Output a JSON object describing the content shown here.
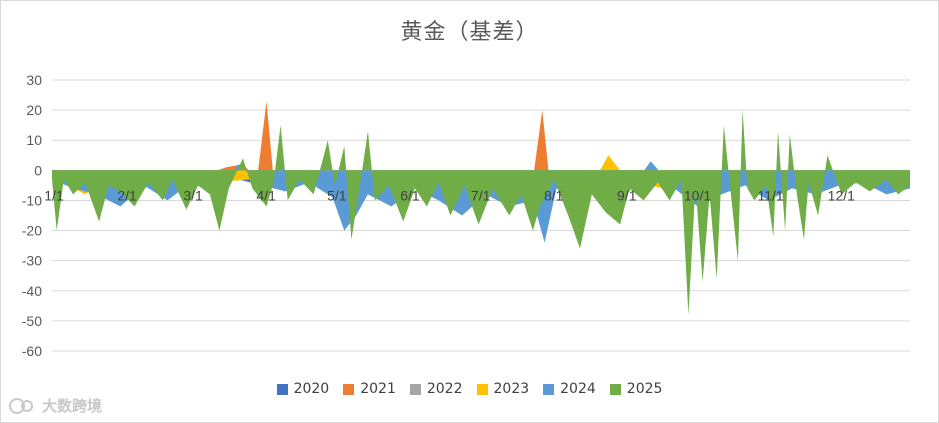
{
  "chart_data": {
    "type": "area",
    "title": "黄金（基差）",
    "xlabel": "",
    "ylabel": "",
    "ylim": [
      -60,
      30
    ],
    "yticks": [
      30,
      20,
      10,
      0,
      -10,
      -20,
      -30,
      -40,
      -50,
      -60
    ],
    "grid": true,
    "legend_position": "bottom",
    "x_tick_labels": [
      "1/1",
      "2/1",
      "3/1",
      "4/1",
      "5/1",
      "6/1",
      "7/1",
      "8/1",
      "9/1",
      "10/1",
      "11/1",
      "12/1"
    ],
    "series": [
      {
        "name": "2020",
        "color": "#4472c4",
        "points": [
          [
            1,
            -3
          ],
          [
            8,
            -5
          ],
          [
            15,
            -2
          ],
          [
            22,
            -6
          ],
          [
            29,
            -4
          ],
          [
            36,
            -3
          ],
          [
            45,
            -6
          ],
          [
            55,
            -4
          ],
          [
            62,
            -3
          ],
          [
            70,
            -5
          ],
          [
            75,
            -2
          ],
          [
            85,
            -4
          ],
          [
            95,
            -5
          ],
          [
            105,
            -3
          ],
          [
            115,
            -6
          ],
          [
            125,
            -3
          ],
          [
            135,
            -5
          ],
          [
            145,
            -4
          ],
          [
            155,
            -3
          ],
          [
            165,
            -5
          ],
          [
            175,
            -4
          ],
          [
            185,
            -6
          ],
          [
            195,
            -3
          ],
          [
            205,
            -5
          ],
          [
            215,
            -4
          ],
          [
            225,
            -6
          ],
          [
            235,
            -5
          ],
          [
            245,
            -6
          ],
          [
            255,
            -4
          ],
          [
            265,
            -3
          ],
          [
            275,
            -5
          ],
          [
            285,
            -4
          ],
          [
            295,
            -3
          ],
          [
            305,
            -5
          ],
          [
            315,
            -4
          ],
          [
            325,
            -3
          ],
          [
            335,
            -4
          ],
          [
            345,
            -3
          ],
          [
            355,
            -5
          ],
          [
            365,
            -4
          ]
        ]
      },
      {
        "name": "2021",
        "color": "#ed7d31",
        "points": [
          [
            1,
            -2
          ],
          [
            20,
            -4
          ],
          [
            40,
            -6
          ],
          [
            50,
            -2
          ],
          [
            60,
            -3
          ],
          [
            75,
            1
          ],
          [
            82,
            2
          ],
          [
            88,
            -3
          ],
          [
            92,
            23
          ],
          [
            95,
            -3
          ],
          [
            100,
            -2
          ],
          [
            110,
            -4
          ],
          [
            120,
            -3
          ],
          [
            130,
            -5
          ],
          [
            145,
            -3
          ],
          [
            160,
            -4
          ],
          [
            175,
            -6
          ],
          [
            185,
            -3
          ],
          [
            195,
            -5
          ],
          [
            205,
            -3
          ],
          [
            209,
            20
          ],
          [
            212,
            -3
          ],
          [
            220,
            -4
          ],
          [
            235,
            -3
          ],
          [
            250,
            -4
          ],
          [
            260,
            -2
          ],
          [
            275,
            -5
          ],
          [
            290,
            -3
          ],
          [
            305,
            -6
          ],
          [
            320,
            -3
          ],
          [
            335,
            -4
          ],
          [
            350,
            -3
          ],
          [
            365,
            -2
          ]
        ]
      },
      {
        "name": "2022",
        "color": "#a5a5a5",
        "points": [
          [
            1,
            -2
          ],
          [
            15,
            -3
          ],
          [
            30,
            -1
          ],
          [
            45,
            -4
          ],
          [
            60,
            -2
          ],
          [
            75,
            -3
          ],
          [
            90,
            -2
          ],
          [
            105,
            -3
          ],
          [
            120,
            -2
          ],
          [
            135,
            -4
          ],
          [
            150,
            -2
          ],
          [
            165,
            -3
          ],
          [
            180,
            -2
          ],
          [
            195,
            -4
          ],
          [
            210,
            -2
          ],
          [
            225,
            -3
          ],
          [
            240,
            -2
          ],
          [
            255,
            -3
          ],
          [
            270,
            -1
          ],
          [
            285,
            -3
          ],
          [
            300,
            -2
          ],
          [
            315,
            -4
          ],
          [
            330,
            -2
          ],
          [
            345,
            -3
          ],
          [
            365,
            -2
          ]
        ]
      },
      {
        "name": "2023",
        "color": "#ffc000",
        "points": [
          [
            1,
            -2
          ],
          [
            15,
            -8
          ],
          [
            25,
            -3
          ],
          [
            40,
            -6
          ],
          [
            55,
            -2
          ],
          [
            70,
            -4
          ],
          [
            85,
            -3
          ],
          [
            100,
            -5
          ],
          [
            115,
            -3
          ],
          [
            125,
            -8
          ],
          [
            135,
            -4
          ],
          [
            150,
            -6
          ],
          [
            165,
            -3
          ],
          [
            180,
            -7
          ],
          [
            190,
            -4
          ],
          [
            205,
            -6
          ],
          [
            215,
            -3
          ],
          [
            230,
            -5
          ],
          [
            237,
            5
          ],
          [
            245,
            -3
          ],
          [
            260,
            -6
          ],
          [
            270,
            -3
          ],
          [
            280,
            -8
          ],
          [
            290,
            -4
          ],
          [
            305,
            -3
          ],
          [
            320,
            -5
          ],
          [
            335,
            -4
          ],
          [
            350,
            -3
          ],
          [
            365,
            -6
          ]
        ]
      },
      {
        "name": "2024",
        "color": "#5b9bd5",
        "points": [
          [
            1,
            -3
          ],
          [
            10,
            -6
          ],
          [
            20,
            -8
          ],
          [
            30,
            -12
          ],
          [
            40,
            -5
          ],
          [
            50,
            -10
          ],
          [
            60,
            -4
          ],
          [
            70,
            -8
          ],
          [
            80,
            2
          ],
          [
            90,
            -5
          ],
          [
            100,
            -7
          ],
          [
            110,
            -4
          ],
          [
            120,
            -9
          ],
          [
            125,
            -20
          ],
          [
            130,
            -15
          ],
          [
            135,
            -8
          ],
          [
            145,
            -12
          ],
          [
            155,
            -6
          ],
          [
            165,
            -10
          ],
          [
            175,
            -15
          ],
          [
            185,
            -8
          ],
          [
            195,
            -12
          ],
          [
            205,
            -10
          ],
          [
            210,
            -24
          ],
          [
            215,
            -6
          ],
          [
            225,
            -10
          ],
          [
            235,
            -5
          ],
          [
            245,
            -8
          ],
          [
            255,
            3
          ],
          [
            265,
            -6
          ],
          [
            275,
            -12
          ],
          [
            285,
            -8
          ],
          [
            295,
            -5
          ],
          [
            305,
            -10
          ],
          [
            315,
            -6
          ],
          [
            325,
            -8
          ],
          [
            335,
            -5
          ],
          [
            345,
            -4
          ],
          [
            355,
            -8
          ],
          [
            365,
            -6
          ]
        ]
      },
      {
        "name": "2025",
        "color": "#70ad47",
        "points": [
          [
            1,
            -3
          ],
          [
            3,
            -20
          ],
          [
            6,
            -3
          ],
          [
            10,
            -8
          ],
          [
            15,
            -4
          ],
          [
            21,
            -17
          ],
          [
            25,
            -5
          ],
          [
            30,
            -7
          ],
          [
            36,
            -12
          ],
          [
            42,
            -4
          ],
          [
            48,
            -10
          ],
          [
            52,
            -3
          ],
          [
            58,
            -13
          ],
          [
            63,
            -5
          ],
          [
            68,
            -8
          ],
          [
            72,
            -20
          ],
          [
            76,
            -6
          ],
          [
            82,
            4
          ],
          [
            86,
            -6
          ],
          [
            92,
            -12
          ],
          [
            95,
            -4
          ],
          [
            98,
            15
          ],
          [
            101,
            -10
          ],
          [
            106,
            -3
          ],
          [
            112,
            -8
          ],
          [
            118,
            10
          ],
          [
            121,
            -5
          ],
          [
            125,
            8
          ],
          [
            128,
            -23
          ],
          [
            132,
            -3
          ],
          [
            135,
            13
          ],
          [
            138,
            -10
          ],
          [
            144,
            -5
          ],
          [
            150,
            -17
          ],
          [
            155,
            -6
          ],
          [
            160,
            -12
          ],
          [
            165,
            -4
          ],
          [
            170,
            -15
          ],
          [
            176,
            -5
          ],
          [
            182,
            -18
          ],
          [
            188,
            -6
          ],
          [
            195,
            -15
          ],
          [
            200,
            -8
          ],
          [
            205,
            -20
          ],
          [
            208,
            -12
          ],
          [
            214,
            -3
          ],
          [
            220,
            -15
          ],
          [
            225,
            -26
          ],
          [
            230,
            -8
          ],
          [
            236,
            -14
          ],
          [
            242,
            -18
          ],
          [
            246,
            -6
          ],
          [
            252,
            -10
          ],
          [
            258,
            -4
          ],
          [
            263,
            -10
          ],
          [
            268,
            -3
          ],
          [
            271,
            -48
          ],
          [
            274,
            -5
          ],
          [
            277,
            -37
          ],
          [
            280,
            -8
          ],
          [
            283,
            -36
          ],
          [
            286,
            15
          ],
          [
            289,
            -8
          ],
          [
            292,
            -30
          ],
          [
            294,
            20
          ],
          [
            296,
            -6
          ],
          [
            299,
            -10
          ],
          [
            304,
            -5
          ],
          [
            307,
            -22
          ],
          [
            309,
            13
          ],
          [
            312,
            -20
          ],
          [
            314,
            12
          ],
          [
            317,
            -8
          ],
          [
            320,
            -23
          ],
          [
            322,
            -4
          ],
          [
            326,
            -15
          ],
          [
            330,
            5
          ],
          [
            336,
            -8
          ],
          [
            342,
            -4
          ],
          [
            348,
            -7
          ],
          [
            355,
            -3
          ],
          [
            360,
            -8
          ],
          [
            365,
            -5
          ]
        ]
      }
    ]
  },
  "watermark": {
    "text": "大数跨境"
  }
}
